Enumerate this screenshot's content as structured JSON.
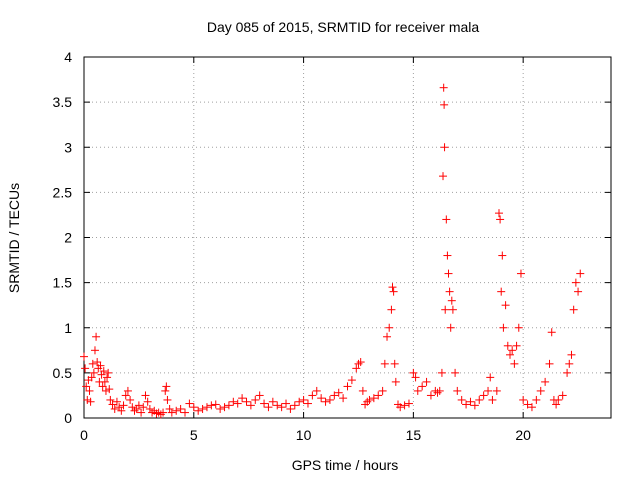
{
  "chart_data": {
    "type": "scatter",
    "title": "Day 085 of 2015, SRMTID for receiver mala",
    "xlabel": "GPS time / hours",
    "ylabel": "SRMTID / TECUs",
    "xlim": [
      0,
      24
    ],
    "ylim": [
      0,
      4
    ],
    "xticks": [
      0,
      5,
      10,
      15,
      20
    ],
    "yticks": [
      0,
      0.5,
      1,
      1.5,
      2,
      2.5,
      3,
      3.5,
      4
    ],
    "xtick_labels": [
      "0",
      "5",
      "10",
      "15",
      "20"
    ],
    "ytick_labels": [
      "0",
      "0.5",
      "1",
      "1.5",
      "2",
      "2.5",
      "3",
      "3.5",
      "4"
    ],
    "marker": "+",
    "color": "#ff0000",
    "grid": true,
    "series": [
      {
        "name": "SRMTID",
        "points": [
          [
            0.0,
            0.68
          ],
          [
            0.05,
            0.55
          ],
          [
            0.1,
            0.35
          ],
          [
            0.15,
            0.2
          ],
          [
            0.2,
            0.42
          ],
          [
            0.25,
            0.3
          ],
          [
            0.3,
            0.18
          ],
          [
            0.35,
            0.45
          ],
          [
            0.4,
            0.6
          ],
          [
            0.45,
            0.5
          ],
          [
            0.5,
            0.75
          ],
          [
            0.55,
            0.9
          ],
          [
            0.6,
            0.62
          ],
          [
            0.65,
            0.55
          ],
          [
            0.7,
            0.4
          ],
          [
            0.75,
            0.58
          ],
          [
            0.8,
            0.48
          ],
          [
            0.85,
            0.35
          ],
          [
            0.9,
            0.52
          ],
          [
            0.95,
            0.4
          ],
          [
            1.0,
            0.3
          ],
          [
            1.05,
            0.45
          ],
          [
            1.1,
            0.5
          ],
          [
            1.15,
            0.32
          ],
          [
            1.2,
            0.2
          ],
          [
            1.3,
            0.15
          ],
          [
            1.4,
            0.1
          ],
          [
            1.5,
            0.18
          ],
          [
            1.6,
            0.12
          ],
          [
            1.7,
            0.08
          ],
          [
            1.8,
            0.14
          ],
          [
            1.9,
            0.25
          ],
          [
            2.0,
            0.3
          ],
          [
            2.1,
            0.2
          ],
          [
            2.2,
            0.12
          ],
          [
            2.3,
            0.08
          ],
          [
            2.4,
            0.1
          ],
          [
            2.5,
            0.14
          ],
          [
            2.6,
            0.06
          ],
          [
            2.7,
            0.12
          ],
          [
            2.8,
            0.25
          ],
          [
            2.9,
            0.18
          ],
          [
            3.0,
            0.1
          ],
          [
            3.1,
            0.06
          ],
          [
            3.2,
            0.08
          ],
          [
            3.3,
            0.05
          ],
          [
            3.4,
            0.06
          ],
          [
            3.5,
            0.04
          ],
          [
            3.6,
            0.06
          ],
          [
            3.7,
            0.3
          ],
          [
            3.75,
            0.35
          ],
          [
            3.8,
            0.2
          ],
          [
            3.9,
            0.1
          ],
          [
            4.0,
            0.06
          ],
          [
            4.2,
            0.08
          ],
          [
            4.4,
            0.1
          ],
          [
            4.6,
            0.06
          ],
          [
            4.8,
            0.16
          ],
          [
            5.0,
            0.12
          ],
          [
            5.2,
            0.08
          ],
          [
            5.4,
            0.1
          ],
          [
            5.6,
            0.12
          ],
          [
            5.8,
            0.14
          ],
          [
            6.0,
            0.15
          ],
          [
            6.2,
            0.1
          ],
          [
            6.4,
            0.12
          ],
          [
            6.6,
            0.14
          ],
          [
            6.8,
            0.18
          ],
          [
            7.0,
            0.16
          ],
          [
            7.2,
            0.22
          ],
          [
            7.4,
            0.18
          ],
          [
            7.6,
            0.14
          ],
          [
            7.8,
            0.2
          ],
          [
            8.0,
            0.25
          ],
          [
            8.2,
            0.16
          ],
          [
            8.4,
            0.12
          ],
          [
            8.6,
            0.18
          ],
          [
            8.8,
            0.14
          ],
          [
            9.0,
            0.12
          ],
          [
            9.2,
            0.16
          ],
          [
            9.4,
            0.1
          ],
          [
            9.6,
            0.14
          ],
          [
            9.8,
            0.18
          ],
          [
            10.0,
            0.2
          ],
          [
            10.2,
            0.16
          ],
          [
            10.4,
            0.25
          ],
          [
            10.6,
            0.3
          ],
          [
            10.8,
            0.22
          ],
          [
            11.0,
            0.18
          ],
          [
            11.2,
            0.2
          ],
          [
            11.4,
            0.25
          ],
          [
            11.6,
            0.28
          ],
          [
            11.8,
            0.22
          ],
          [
            12.0,
            0.35
          ],
          [
            12.2,
            0.42
          ],
          [
            12.4,
            0.55
          ],
          [
            12.5,
            0.6
          ],
          [
            12.6,
            0.62
          ],
          [
            12.7,
            0.3
          ],
          [
            12.8,
            0.15
          ],
          [
            12.9,
            0.18
          ],
          [
            13.0,
            0.2
          ],
          [
            13.2,
            0.22
          ],
          [
            13.4,
            0.25
          ],
          [
            13.6,
            0.3
          ],
          [
            13.7,
            0.6
          ],
          [
            13.8,
            0.9
          ],
          [
            13.9,
            1.0
          ],
          [
            14.0,
            1.2
          ],
          [
            14.05,
            1.45
          ],
          [
            14.1,
            1.4
          ],
          [
            14.15,
            0.6
          ],
          [
            14.2,
            0.4
          ],
          [
            14.3,
            0.15
          ],
          [
            14.4,
            0.12
          ],
          [
            14.6,
            0.14
          ],
          [
            14.8,
            0.16
          ],
          [
            15.0,
            0.5
          ],
          [
            15.1,
            0.45
          ],
          [
            15.2,
            0.3
          ],
          [
            15.4,
            0.35
          ],
          [
            15.6,
            0.4
          ],
          [
            15.8,
            0.25
          ],
          [
            16.0,
            0.3
          ],
          [
            16.1,
            0.28
          ],
          [
            16.2,
            0.3
          ],
          [
            16.3,
            0.5
          ],
          [
            16.35,
            2.68
          ],
          [
            16.38,
            3.66
          ],
          [
            16.4,
            3.47
          ],
          [
            16.42,
            3.0
          ],
          [
            16.45,
            1.2
          ],
          [
            16.5,
            2.2
          ],
          [
            16.55,
            1.8
          ],
          [
            16.6,
            1.6
          ],
          [
            16.65,
            1.4
          ],
          [
            16.7,
            1.0
          ],
          [
            16.75,
            1.3
          ],
          [
            16.8,
            1.2
          ],
          [
            16.9,
            0.5
          ],
          [
            17.0,
            0.3
          ],
          [
            17.2,
            0.2
          ],
          [
            17.4,
            0.15
          ],
          [
            17.6,
            0.18
          ],
          [
            17.8,
            0.14
          ],
          [
            18.0,
            0.2
          ],
          [
            18.2,
            0.25
          ],
          [
            18.4,
            0.3
          ],
          [
            18.5,
            0.45
          ],
          [
            18.6,
            0.2
          ],
          [
            18.8,
            0.3
          ],
          [
            18.9,
            2.27
          ],
          [
            18.95,
            2.2
          ],
          [
            19.0,
            1.4
          ],
          [
            19.05,
            1.8
          ],
          [
            19.1,
            1.0
          ],
          [
            19.2,
            1.25
          ],
          [
            19.3,
            0.8
          ],
          [
            19.4,
            0.7
          ],
          [
            19.5,
            0.75
          ],
          [
            19.6,
            0.6
          ],
          [
            19.7,
            0.8
          ],
          [
            19.8,
            1.0
          ],
          [
            19.9,
            1.6
          ],
          [
            20.0,
            0.2
          ],
          [
            20.2,
            0.15
          ],
          [
            20.4,
            0.12
          ],
          [
            20.6,
            0.2
          ],
          [
            20.8,
            0.3
          ],
          [
            21.0,
            0.4
          ],
          [
            21.2,
            0.6
          ],
          [
            21.3,
            0.95
          ],
          [
            21.4,
            0.2
          ],
          [
            21.5,
            0.15
          ],
          [
            21.6,
            0.2
          ],
          [
            21.8,
            0.25
          ],
          [
            22.0,
            0.5
          ],
          [
            22.1,
            0.6
          ],
          [
            22.2,
            0.7
          ],
          [
            22.3,
            1.2
          ],
          [
            22.4,
            1.5
          ],
          [
            22.5,
            1.4
          ],
          [
            22.6,
            1.6
          ]
        ]
      }
    ]
  }
}
